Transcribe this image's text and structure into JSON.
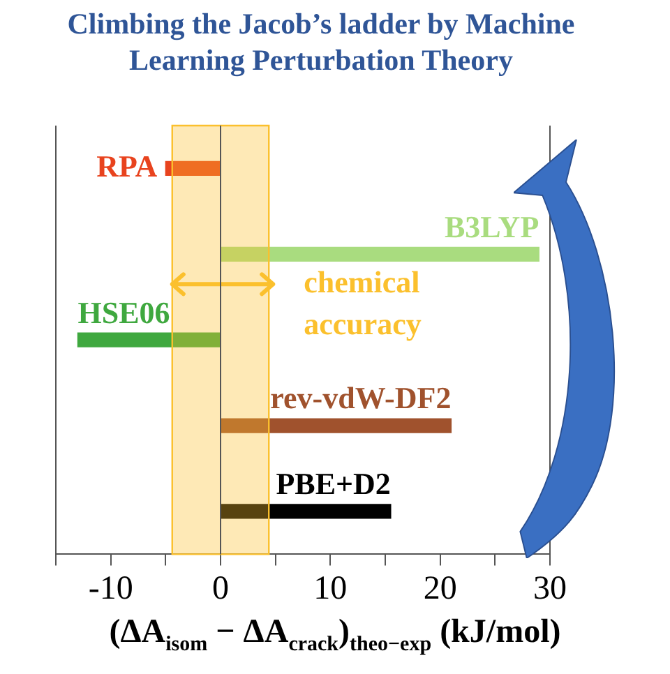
{
  "chart_data": {
    "type": "bar",
    "orientation": "horizontal",
    "title": "Climbing the Jacob’s ladder by Machine Learning Perturbation Theory",
    "xlabel": "(ΔA$_{isom}$ − ΔA$_{crack}$)$_{theo−exp}$ (kJ/mol)",
    "categories": [
      "RPA",
      "B3LYP",
      "HSE06",
      "rev-vdW-DF2",
      "PBE+D2"
    ],
    "values": [
      -5,
      29,
      -13,
      21,
      15.5
    ],
    "colors": [
      "#e8431e",
      "#a9dc7f",
      "#3fa83f",
      "#a0522d",
      "#000000"
    ],
    "xlim": [
      -15,
      30
    ],
    "xticks": [
      {
        "value": -15,
        "label": null
      },
      -10,
      {
        "value": -5,
        "label": null
      },
      {
        "value": 0,
        "label": "0"
      },
      {
        "value": 5,
        "label": null
      },
      10,
      {
        "value": 15,
        "label": null
      },
      20,
      {
        "value": 25,
        "label": null
      },
      30
    ],
    "bands": [
      {
        "axis": "x",
        "from": -4.4,
        "to": 4.4,
        "label": "chemical accuracy",
        "color": "#fbc02d"
      }
    ],
    "grid": false,
    "legend": false
  }
}
